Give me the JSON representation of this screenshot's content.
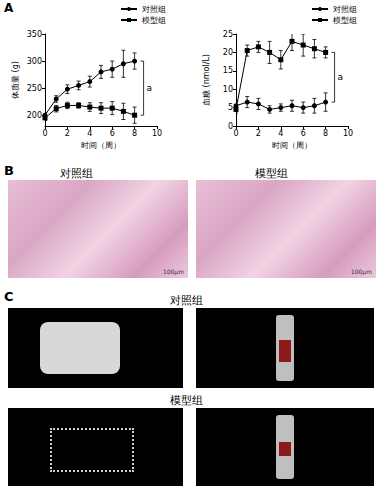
{
  "chart_data": [
    {
      "type": "line",
      "panel": "A",
      "xlabel": "时间（周）",
      "ylabel": "体质量 (g)",
      "x": [
        0,
        1,
        2,
        3,
        4,
        5,
        6,
        7,
        8
      ],
      "xlim": [
        0,
        10
      ],
      "xticks": [
        0,
        2,
        4,
        6,
        8,
        10
      ],
      "ylim": [
        180,
        350
      ],
      "yticks": [
        200,
        250,
        300,
        350
      ],
      "grid": false,
      "legend": "upper right",
      "annotations": [
        "a"
      ],
      "series": [
        {
          "name": "对照组",
          "color": "#000000",
          "marker": "circle",
          "line_style": "solid",
          "values": [
            200,
            230,
            248,
            255,
            262,
            280,
            285,
            295,
            300
          ],
          "errors": [
            5,
            6,
            8,
            8,
            10,
            12,
            15,
            25,
            15
          ]
        },
        {
          "name": "模型组",
          "color": "#000000",
          "marker": "square",
          "line_style": "solid",
          "values": [
            195,
            212,
            218,
            218,
            215,
            213,
            213,
            207,
            200
          ],
          "errors": [
            5,
            6,
            6,
            5,
            8,
            10,
            12,
            15,
            15
          ]
        }
      ]
    },
    {
      "type": "line",
      "xlabel": "时间（周）",
      "ylabel": "血糖 (nmol/L)",
      "x": [
        0,
        1,
        2,
        3,
        4,
        5,
        6,
        7,
        8
      ],
      "xlim": [
        0,
        10
      ],
      "xticks": [
        0,
        2,
        4,
        6,
        8,
        10
      ],
      "ylim": [
        0,
        25
      ],
      "yticks": [
        0,
        5,
        10,
        15,
        20,
        25
      ],
      "grid": false,
      "legend": "upper right",
      "annotations": [
        "a"
      ],
      "series": [
        {
          "name": "对照组",
          "color": "#000000",
          "marker": "circle",
          "line_style": "solid",
          "values": [
            5.5,
            6.5,
            6,
            4.5,
            5,
            5.5,
            5,
            5.5,
            6.5
          ],
          "errors": [
            1.5,
            1.5,
            1.5,
            1,
            1,
            1.5,
            1.5,
            2,
            2.5
          ]
        },
        {
          "name": "模型组",
          "color": "#000000",
          "marker": "square",
          "line_style": "solid",
          "values": [
            4.5,
            20.5,
            21.5,
            20,
            18,
            23,
            22,
            21,
            20
          ],
          "errors": [
            1,
            1.5,
            1.5,
            3,
            2.5,
            2.5,
            3,
            2.5,
            1.5
          ]
        }
      ]
    }
  ],
  "panels": {
    "B": {
      "label": "B",
      "groups": [
        "对照组",
        "模型组"
      ],
      "scale_bar": "100μm"
    },
    "C": {
      "label": "C",
      "groups": [
        "对照组",
        "模型组"
      ]
    }
  }
}
